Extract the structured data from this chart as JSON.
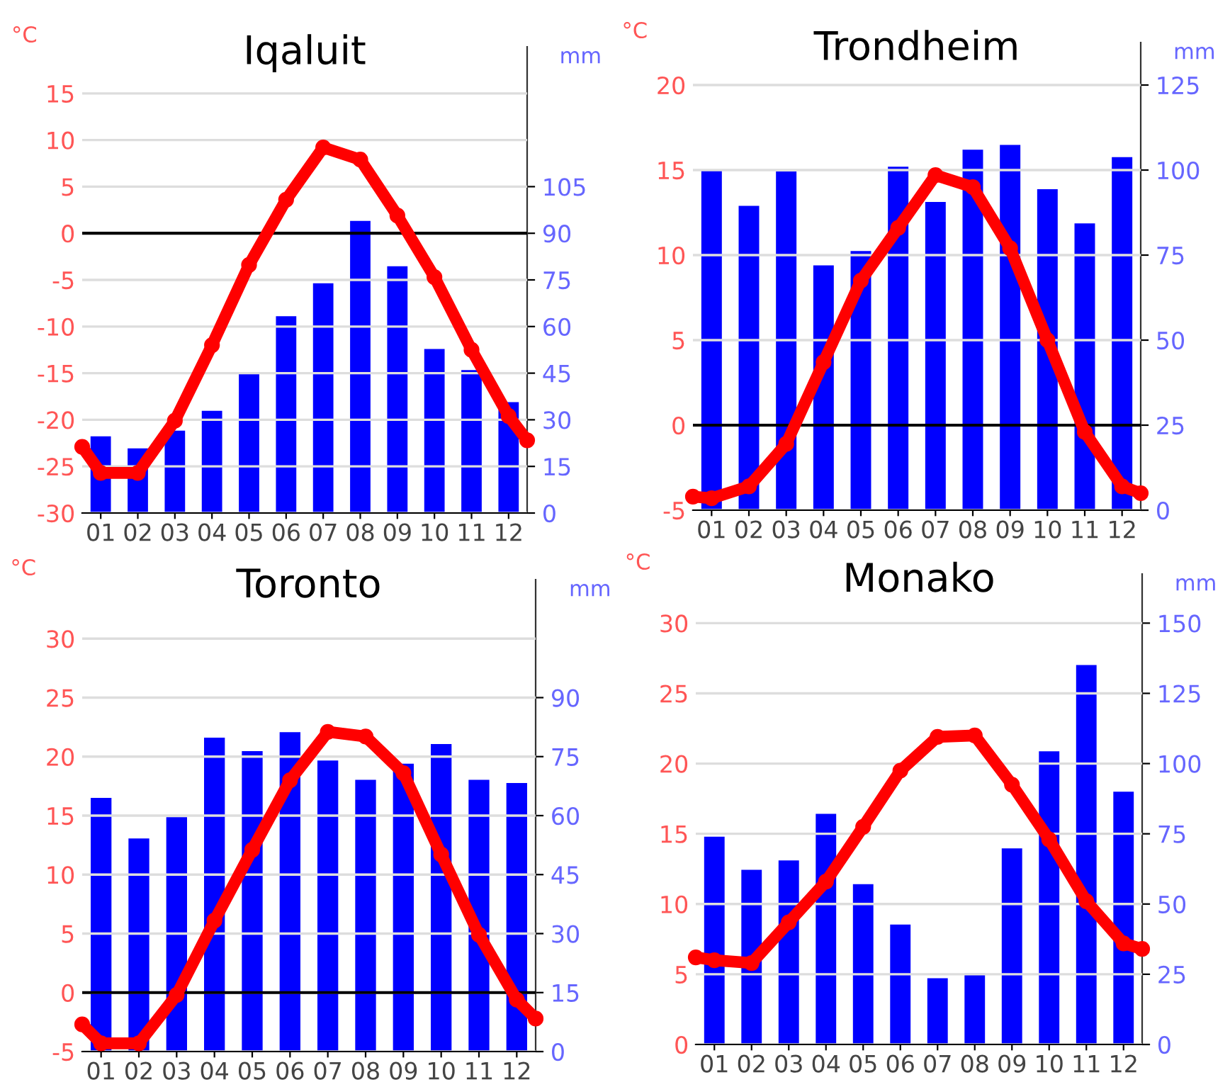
{
  "chart_data": [
    {
      "type": "bar",
      "title": "Iqaluit",
      "ylabel": "°C",
      "y2label": "mm",
      "xlim": [
        0.5,
        12.5
      ],
      "xticks": [
        {
          "value": 1,
          "label": "01"
        },
        {
          "value": 2,
          "label": "02"
        },
        {
          "value": 3,
          "label": "03"
        },
        {
          "value": 4,
          "label": "04"
        },
        {
          "value": 5,
          "label": "05"
        },
        {
          "value": 6,
          "label": "06"
        },
        {
          "value": 7,
          "label": "07"
        },
        {
          "value": 8,
          "label": "08"
        },
        {
          "value": 9,
          "label": "09"
        },
        {
          "value": 10,
          "label": "10"
        },
        {
          "value": 11,
          "label": "11"
        },
        {
          "value": 12,
          "label": "12"
        }
      ],
      "ylim": [
        -30,
        20
      ],
      "yticks": [
        -30,
        -25,
        -20,
        -15,
        -10,
        -5,
        0,
        5,
        10,
        15
      ],
      "y2lim": [
        0,
        150
      ],
      "y2ticks": [
        0,
        15,
        30,
        45,
        60,
        75,
        90,
        105
      ],
      "grid": "y",
      "marker": "circle",
      "ref_lines": [
        {
          "axis": "y",
          "value": 0,
          "color": "#000000"
        }
      ],
      "series": [
        {
          "axis": "y2",
          "color": "#0000ff",
          "x": [
            1,
            2,
            3,
            4,
            5,
            6,
            7,
            8,
            9,
            10,
            11,
            12
          ],
          "values": [
            24.7,
            20.8,
            26.5,
            32.9,
            45,
            63.3,
            73.9,
            94,
            79.4,
            52.8,
            46,
            35.7
          ]
        },
        {
          "type": "line",
          "axis": "y",
          "color": "#ff0000",
          "x": [
            0.5,
            1,
            2,
            3,
            4,
            5,
            6,
            7,
            8,
            9,
            10,
            11,
            12,
            12.5
          ],
          "values": [
            -22.9,
            -25.7,
            -25.7,
            -20.1,
            -12,
            -3.4,
            3.6,
            9.2,
            7.9,
            1.9,
            -4.7,
            -12.5,
            -19.6,
            -22.2
          ]
        }
      ]
    },
    {
      "type": "bar",
      "title": "Trondheim",
      "ylabel": "°C",
      "y2label": "mm",
      "xlim": [
        0.5,
        12.5
      ],
      "xticks": [
        {
          "value": 1,
          "label": "01"
        },
        {
          "value": 2,
          "label": "02"
        },
        {
          "value": 3,
          "label": "03"
        },
        {
          "value": 4,
          "label": "04"
        },
        {
          "value": 5,
          "label": "05"
        },
        {
          "value": 6,
          "label": "06"
        },
        {
          "value": 7,
          "label": "07"
        },
        {
          "value": 8,
          "label": "08"
        },
        {
          "value": 9,
          "label": "09"
        },
        {
          "value": 10,
          "label": "10"
        },
        {
          "value": 11,
          "label": "11"
        },
        {
          "value": 12,
          "label": "12"
        }
      ],
      "ylim": [
        -5,
        22.5
      ],
      "yticks": [
        -5,
        0,
        5,
        10,
        15,
        20
      ],
      "y2lim": [
        0,
        137.5
      ],
      "y2ticks": [
        0,
        25,
        50,
        75,
        100,
        125
      ],
      "grid": "y",
      "marker": "circle",
      "ref_lines": [
        {
          "axis": "y",
          "value": 0,
          "color": "#000000"
        }
      ],
      "series": [
        {
          "axis": "y2",
          "color": "#0000ff",
          "x": [
            1,
            2,
            3,
            4,
            5,
            6,
            7,
            8,
            9,
            10,
            11,
            12
          ],
          "values": [
            100,
            89.5,
            99.6,
            72,
            76.2,
            101,
            90.6,
            106,
            107.4,
            94.4,
            84.3,
            103.8
          ]
        },
        {
          "type": "line",
          "axis": "y",
          "color": "#ff0000",
          "x": [
            0.5,
            1,
            2,
            3,
            4,
            5,
            6,
            7,
            8,
            9,
            10,
            11,
            12,
            12.5
          ],
          "values": [
            -4.2,
            -4.3,
            -3.6,
            -1.1,
            3.7,
            8.5,
            11.6,
            14.7,
            14,
            10.4,
            5,
            -0.4,
            -3.6,
            -4
          ]
        }
      ]
    },
    {
      "type": "bar",
      "title": "Toronto",
      "ylabel": "°C",
      "y2label": "mm",
      "xlim": [
        0.5,
        12.5
      ],
      "xticks": [
        {
          "value": 1,
          "label": "01"
        },
        {
          "value": 2,
          "label": "02"
        },
        {
          "value": 3,
          "label": "03"
        },
        {
          "value": 4,
          "label": "04"
        },
        {
          "value": 5,
          "label": "05"
        },
        {
          "value": 6,
          "label": "06"
        },
        {
          "value": 7,
          "label": "07"
        },
        {
          "value": 8,
          "label": "08"
        },
        {
          "value": 9,
          "label": "09"
        },
        {
          "value": 10,
          "label": "10"
        },
        {
          "value": 11,
          "label": "11"
        },
        {
          "value": 12,
          "label": "12"
        }
      ],
      "ylim": [
        -5,
        35
      ],
      "yticks": [
        -5,
        0,
        5,
        10,
        15,
        20,
        25,
        30
      ],
      "y2lim": [
        0,
        120
      ],
      "y2ticks": [
        0,
        15,
        30,
        45,
        60,
        75,
        90
      ],
      "grid": "y",
      "marker": "circle",
      "ref_lines": [
        {
          "axis": "y",
          "value": 0,
          "color": "#000000"
        }
      ],
      "series": [
        {
          "axis": "y2",
          "color": "#0000ff",
          "x": [
            1,
            2,
            3,
            4,
            5,
            6,
            7,
            8,
            9,
            10,
            11,
            12
          ],
          "values": [
            64.5,
            54.2,
            59.6,
            79.8,
            76.4,
            81.2,
            74,
            69.1,
            73.2,
            78.2,
            69.1,
            68.3
          ]
        },
        {
          "type": "line",
          "axis": "y",
          "color": "#ff0000",
          "x": [
            0.5,
            1,
            2,
            3,
            4,
            5,
            6,
            7,
            8,
            9,
            10,
            11,
            12,
            12.5
          ],
          "values": [
            -2.7,
            -4.3,
            -4.3,
            -0.2,
            6.1,
            12.1,
            18,
            22.1,
            21.7,
            18.6,
            11.7,
            4.9,
            -0.6,
            -2.2
          ]
        }
      ]
    },
    {
      "type": "bar",
      "title": "Monako",
      "ylabel": "°C",
      "y2label": "mm",
      "xlim": [
        0.5,
        12.5
      ],
      "xticks": [
        {
          "value": 1,
          "label": "01"
        },
        {
          "value": 2,
          "label": "02"
        },
        {
          "value": 3,
          "label": "03"
        },
        {
          "value": 4,
          "label": "04"
        },
        {
          "value": 5,
          "label": "05"
        },
        {
          "value": 6,
          "label": "06"
        },
        {
          "value": 7,
          "label": "07"
        },
        {
          "value": 8,
          "label": "08"
        },
        {
          "value": 9,
          "label": "09"
        },
        {
          "value": 10,
          "label": "10"
        },
        {
          "value": 11,
          "label": "11"
        },
        {
          "value": 12,
          "label": "12"
        }
      ],
      "ylim": [
        0,
        33.5
      ],
      "yticks": [
        0,
        5,
        10,
        15,
        20,
        25,
        30
      ],
      "y2lim": [
        0,
        167.5
      ],
      "y2ticks": [
        0,
        25,
        50,
        75,
        100,
        125,
        150
      ],
      "grid": "y",
      "marker": "circle",
      "series": [
        {
          "axis": "y2",
          "color": "#0000ff",
          "x": [
            1,
            2,
            3,
            4,
            5,
            6,
            7,
            8,
            9,
            10,
            11,
            12
          ],
          "values": [
            74,
            62.2,
            65.5,
            82.1,
            57.1,
            42.7,
            23.6,
            25.3,
            69.8,
            104.4,
            135.1,
            90
          ]
        },
        {
          "type": "line",
          "axis": "y",
          "color": "#ff0000",
          "x": [
            0.5,
            1,
            2,
            3,
            4,
            5,
            6,
            7,
            8,
            9,
            10,
            11,
            12,
            12.5
          ],
          "values": [
            6.2,
            6,
            5.8,
            8.7,
            11.6,
            15.5,
            19.5,
            21.9,
            22,
            18.5,
            14.6,
            10.2,
            7.2,
            6.8
          ]
        }
      ]
    }
  ]
}
